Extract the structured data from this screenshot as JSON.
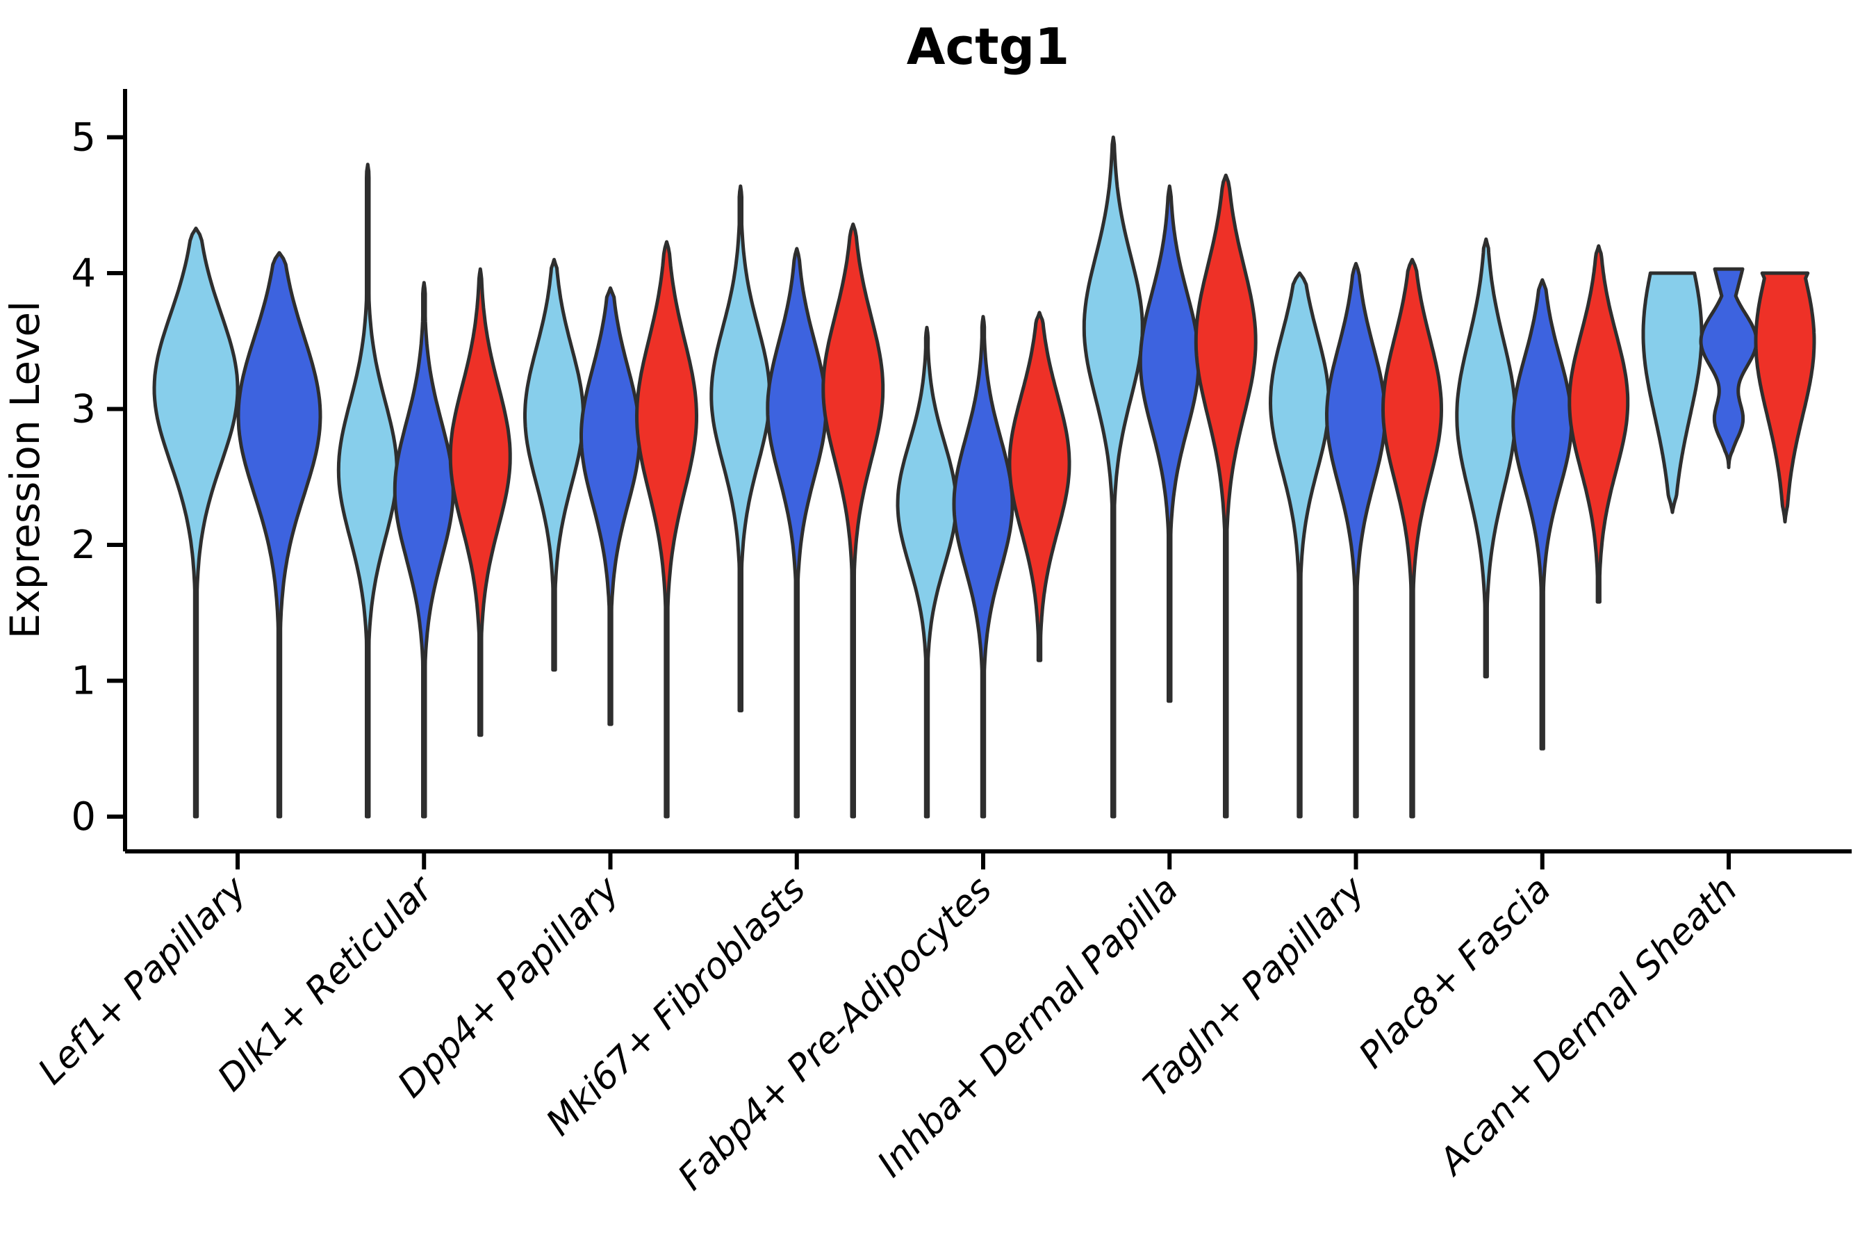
{
  "title": "Actg1",
  "axes": {
    "ylabel": "Expression Level",
    "ytick_labels": [
      "0",
      "1",
      "2",
      "3",
      "4",
      "5"
    ]
  },
  "chart_data": {
    "type": "violin",
    "title": "Actg1",
    "xlabel": "",
    "ylabel": "Expression Level",
    "ylim": [
      0,
      5
    ],
    "yticks": [
      0,
      1,
      2,
      3,
      4,
      5
    ],
    "grid": false,
    "legend": "none",
    "categories": [
      "Lef1+ Papillary",
      "Dlk1+ Reticular",
      "Dpp4+ Papillary",
      "Mki67+ Fibroblasts",
      "Fabp4+ Pre-Adipocytes",
      "Inhba+ Dermal Papilla",
      "Tagln+ Papillary",
      "Plac8+ Fascia",
      "Acan+ Dermal Sheath"
    ],
    "palette": {
      "skyblue": "#87CEEB",
      "royalblue": "#3D63DF",
      "red": "#EE3127"
    },
    "outline_color": "#2E2E2E",
    "violins": [
      {
        "category": 0,
        "hue": "skyblue",
        "min": 0.0,
        "max": 4.33,
        "mode": 3.15,
        "sigma": 0.55,
        "halfwidth": 60
      },
      {
        "category": 0,
        "hue": "royalblue",
        "min": 0.0,
        "max": 4.15,
        "mode": 2.95,
        "sigma": 0.58,
        "halfwidth": 59
      },
      {
        "category": 1,
        "hue": "skyblue",
        "min": 0.0,
        "max": 4.8,
        "mode": 2.55,
        "sigma": 0.5,
        "halfwidth": 42
      },
      {
        "category": 1,
        "hue": "royalblue",
        "min": 0.0,
        "max": 3.93,
        "mode": 2.4,
        "sigma": 0.5,
        "halfwidth": 42
      },
      {
        "category": 1,
        "hue": "red",
        "min": 0.6,
        "max": 4.03,
        "mode": 2.65,
        "sigma": 0.52,
        "halfwidth": 43
      },
      {
        "category": 2,
        "hue": "skyblue",
        "min": 1.08,
        "max": 4.1,
        "mode": 2.95,
        "sigma": 0.5,
        "halfwidth": 42
      },
      {
        "category": 2,
        "hue": "royalblue",
        "min": 0.68,
        "max": 3.89,
        "mode": 2.8,
        "sigma": 0.5,
        "halfwidth": 42
      },
      {
        "category": 2,
        "hue": "red",
        "min": 0.0,
        "max": 4.23,
        "mode": 2.95,
        "sigma": 0.55,
        "halfwidth": 43
      },
      {
        "category": 3,
        "hue": "skyblue",
        "min": 0.78,
        "max": 4.64,
        "mode": 3.1,
        "sigma": 0.5,
        "halfwidth": 42
      },
      {
        "category": 3,
        "hue": "royalblue",
        "min": 0.0,
        "max": 4.18,
        "mode": 3.0,
        "sigma": 0.5,
        "halfwidth": 42
      },
      {
        "category": 3,
        "hue": "red",
        "min": 0.0,
        "max": 4.36,
        "mode": 3.15,
        "sigma": 0.53,
        "halfwidth": 43
      },
      {
        "category": 4,
        "hue": "skyblue",
        "min": 0.0,
        "max": 3.6,
        "mode": 2.3,
        "sigma": 0.45,
        "halfwidth": 42
      },
      {
        "category": 4,
        "hue": "royalblue",
        "min": 0.0,
        "max": 3.68,
        "mode": 2.3,
        "sigma": 0.48,
        "halfwidth": 42
      },
      {
        "category": 4,
        "hue": "red",
        "min": 1.15,
        "max": 3.71,
        "mode": 2.6,
        "sigma": 0.5,
        "halfwidth": 43
      },
      {
        "category": 5,
        "hue": "skyblue",
        "min": 0.0,
        "max": 5.0,
        "mode": 3.6,
        "sigma": 0.52,
        "halfwidth": 42
      },
      {
        "category": 5,
        "hue": "royalblue",
        "min": 0.85,
        "max": 4.64,
        "mode": 3.35,
        "sigma": 0.5,
        "halfwidth": 42
      },
      {
        "category": 5,
        "hue": "red",
        "min": 0.0,
        "max": 4.72,
        "mode": 3.5,
        "sigma": 0.55,
        "halfwidth": 43
      },
      {
        "category": 6,
        "hue": "skyblue",
        "min": 0.0,
        "max": 4.0,
        "mode": 3.05,
        "sigma": 0.5,
        "halfwidth": 42
      },
      {
        "category": 6,
        "hue": "royalblue",
        "min": 0.0,
        "max": 4.07,
        "mode": 2.95,
        "sigma": 0.5,
        "halfwidth": 42
      },
      {
        "category": 6,
        "hue": "red",
        "min": 0.0,
        "max": 4.1,
        "mode": 3.0,
        "sigma": 0.52,
        "halfwidth": 42
      },
      {
        "category": 7,
        "hue": "skyblue",
        "min": 1.03,
        "max": 4.25,
        "mode": 2.95,
        "sigma": 0.55,
        "halfwidth": 42
      },
      {
        "category": 7,
        "hue": "royalblue",
        "min": 0.5,
        "max": 3.95,
        "mode": 2.9,
        "sigma": 0.48,
        "halfwidth": 42
      },
      {
        "category": 7,
        "hue": "red",
        "min": 1.58,
        "max": 4.2,
        "mode": 3.05,
        "sigma": 0.5,
        "halfwidth": 42
      },
      {
        "category": 8,
        "hue": "skyblue",
        "min": 2.24,
        "max": 4.0,
        "mode": 3.55,
        "sigma": 0.6,
        "halfwidth": 42,
        "cap": 0.75
      },
      {
        "category": 8,
        "hue": "royalblue",
        "min": 2.57,
        "max": 4.03,
        "mode": 3.5,
        "sigma": 0.2,
        "halfwidth": 40,
        "cap": 0.5,
        "components": [
          [
            3.5,
            0.2,
            1.0
          ],
          [
            2.92,
            0.14,
            0.5
          ]
        ]
      },
      {
        "category": 8,
        "hue": "red",
        "min": 2.17,
        "max": 4.0,
        "mode": 3.5,
        "sigma": 0.55,
        "halfwidth": 42,
        "cap": 0.78
      }
    ]
  }
}
